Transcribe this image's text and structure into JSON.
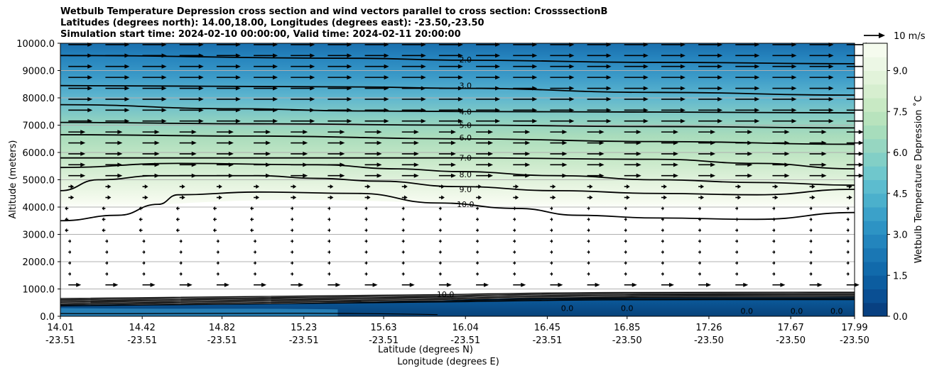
{
  "chart_data": {
    "type": "contourf",
    "title_lines": [
      "Wetbulb Temperature Depression cross section and wind vectors parallel to cross section: CrosssectionB",
      "Latitudes (degrees north): 14.00,18.00, Longitudes (degrees east): -23.50,-23.50",
      "Simulation start time: 2024-02-10 00:00:00, Valid time: 2024-02-11 20:00:00"
    ],
    "xlabel": "Latitude (degrees N)",
    "xlabel2": "Longitude (degrees E)",
    "ylabel": "Altitude (meters)",
    "ylim": [
      0,
      10000
    ],
    "xlim": [
      14.01,
      17.99
    ],
    "y_ticks": [
      "0.0",
      "1000.0",
      "2000.0",
      "3000.0",
      "4000.0",
      "5000.0",
      "6000.0",
      "7000.0",
      "8000.0",
      "9000.0",
      "10000.0"
    ],
    "x_ticks": [
      {
        "lat": "14.01",
        "lon": "-23.51"
      },
      {
        "lat": "14.42",
        "lon": "-23.51"
      },
      {
        "lat": "14.82",
        "lon": "-23.51"
      },
      {
        "lat": "15.23",
        "lon": "-23.51"
      },
      {
        "lat": "15.63",
        "lon": "-23.51"
      },
      {
        "lat": "16.04",
        "lon": "-23.51"
      },
      {
        "lat": "16.45",
        "lon": "-23.51"
      },
      {
        "lat": "16.85",
        "lon": "-23.50"
      },
      {
        "lat": "17.26",
        "lon": "-23.50"
      },
      {
        "lat": "17.67",
        "lon": "-23.50"
      },
      {
        "lat": "17.99",
        "lon": "-23.50"
      }
    ],
    "grid_y": true,
    "colorbar": {
      "label": "Wetbulb Temperature Depression ˚C",
      "range": [
        0,
        10
      ],
      "levels": 20,
      "ticks": [
        "0.0",
        "1.5",
        "3.0",
        "4.5",
        "6.0",
        "7.5",
        "9.0"
      ],
      "colormap": "GnBu_r",
      "position": "right"
    },
    "quiver_key": {
      "label": "10 m/s",
      "position": "top-right"
    },
    "contour_labels": [
      {
        "label": "2.0",
        "x": 16.04,
        "alt": 9400
      },
      {
        "label": "3.0",
        "x": 16.04,
        "alt": 8450
      },
      {
        "label": "4.0",
        "x": 16.04,
        "alt": 7500
      },
      {
        "label": "5.0",
        "x": 16.04,
        "alt": 7000
      },
      {
        "label": "6.0",
        "x": 16.04,
        "alt": 6550
      },
      {
        "label": "7.0",
        "x": 16.04,
        "alt": 5800
      },
      {
        "label": "8.0",
        "x": 16.04,
        "alt": 5200
      },
      {
        "label": "9.0",
        "x": 16.04,
        "alt": 4650
      },
      {
        "label": "10.0",
        "x": 16.04,
        "alt": 4100
      }
    ],
    "surface_labels": [
      {
        "label": "10.0",
        "x": 15.94,
        "alt": 800
      },
      {
        "label": "0.0",
        "x": 16.55,
        "alt": 300
      },
      {
        "label": "0.0",
        "x": 16.85,
        "alt": 300
      },
      {
        "label": "0.0",
        "x": 17.45,
        "alt": 200
      },
      {
        "label": "0.0",
        "x": 17.7,
        "alt": 200
      },
      {
        "label": "0.0",
        "x": 17.9,
        "alt": 200
      }
    ],
    "contour_lines": [
      {
        "value": 2,
        "points": [
          [
            14.01,
            9550
          ],
          [
            15.5,
            9450
          ],
          [
            16.0,
            9380
          ],
          [
            17.0,
            9300
          ],
          [
            17.99,
            9250
          ]
        ]
      },
      {
        "value": 3,
        "points": [
          [
            14.01,
            8450
          ],
          [
            15.5,
            8400
          ],
          [
            16.0,
            8350
          ],
          [
            17.0,
            8200
          ],
          [
            17.99,
            8100
          ]
        ]
      },
      {
        "value": 4,
        "points": [
          [
            14.01,
            7750
          ],
          [
            14.9,
            7600
          ],
          [
            15.5,
            7520
          ],
          [
            16.0,
            7500
          ],
          [
            17.0,
            7480
          ],
          [
            17.99,
            7450
          ]
        ]
      },
      {
        "value": 5,
        "points": [
          [
            14.01,
            7100
          ],
          [
            15.0,
            7050
          ],
          [
            16.0,
            7000
          ],
          [
            17.0,
            6950
          ],
          [
            17.99,
            6900
          ]
        ]
      },
      {
        "value": 6,
        "points": [
          [
            14.01,
            6650
          ],
          [
            15.0,
            6600
          ],
          [
            16.0,
            6500
          ],
          [
            17.0,
            6400
          ],
          [
            17.99,
            6300
          ]
        ]
      },
      {
        "value": 7,
        "points": [
          [
            14.01,
            5800
          ],
          [
            15.0,
            5800
          ],
          [
            16.0,
            5800
          ],
          [
            17.0,
            5750
          ],
          [
            17.5,
            5600
          ],
          [
            17.99,
            5400
          ]
        ]
      },
      {
        "value": 8,
        "points": [
          [
            14.01,
            5450
          ],
          [
            14.6,
            5600
          ],
          [
            15.3,
            5550
          ],
          [
            15.7,
            5400
          ],
          [
            16.0,
            5300
          ],
          [
            16.5,
            5150
          ],
          [
            17.0,
            5000
          ],
          [
            17.5,
            4900
          ],
          [
            17.99,
            4800
          ]
        ]
      },
      {
        "value": 9,
        "points": [
          [
            14.01,
            4600
          ],
          [
            14.2,
            5000
          ],
          [
            14.5,
            5150
          ],
          [
            15.0,
            5150
          ],
          [
            15.3,
            5050
          ],
          [
            15.6,
            4950
          ],
          [
            16.0,
            4750
          ],
          [
            16.5,
            4600
          ],
          [
            17.0,
            4500
          ],
          [
            17.5,
            4450
          ],
          [
            17.99,
            4650
          ]
        ]
      },
      {
        "value": 10,
        "points": [
          [
            14.01,
            3500
          ],
          [
            14.3,
            3700
          ],
          [
            14.5,
            4100
          ],
          [
            14.6,
            4450
          ],
          [
            15.0,
            4550
          ],
          [
            15.5,
            4500
          ],
          [
            15.9,
            4150
          ],
          [
            16.3,
            3950
          ],
          [
            16.6,
            3700
          ],
          [
            17.0,
            3600
          ],
          [
            17.5,
            3550
          ],
          [
            17.99,
            3800
          ]
        ]
      }
    ]
  }
}
